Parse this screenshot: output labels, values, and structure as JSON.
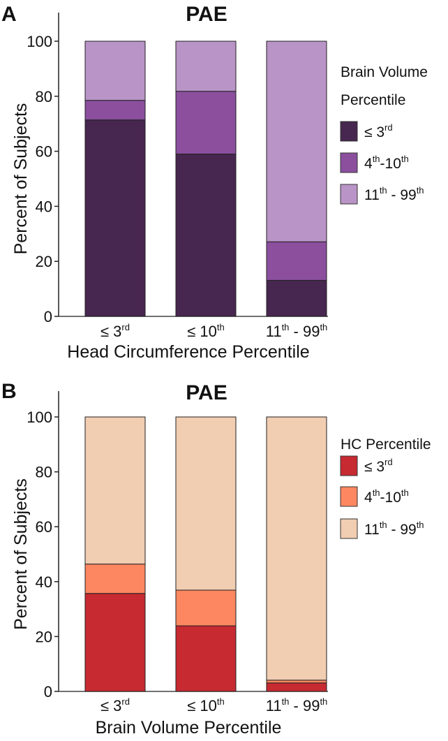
{
  "chart_data": [
    {
      "type": "bar",
      "stacked": true,
      "panel_label": "A",
      "title": "PAE",
      "xlabel": "Head Circumference Percentile",
      "ylabel": "Percent of Subjects",
      "ylim": [
        0,
        110
      ],
      "yticks": [
        "0",
        "20",
        "40",
        "60",
        "80",
        "100"
      ],
      "categories": [
        {
          "base": "≤ 3",
          "sup": "rd"
        },
        {
          "base": "≤ 10",
          "sup": "th"
        },
        {
          "base": "11",
          "sup": "th",
          "mid": " - 99",
          "sup2": "th"
        }
      ],
      "legend_title": [
        "Brain Volume",
        "Percentile"
      ],
      "legend_position": "right",
      "series": [
        {
          "name": {
            "base": "≤ 3",
            "sup": "rd"
          },
          "color": "#47264f",
          "values": [
            71.4,
            59.0,
            13.1
          ]
        },
        {
          "name": {
            "base": "4",
            "sup": "th",
            "mid": "-10",
            "sup2": "th"
          },
          "color": "#8b4f9e",
          "values": [
            7.1,
            22.8,
            14.0
          ]
        },
        {
          "name": {
            "base": "11",
            "sup": "th",
            "mid": " - 99",
            "sup2": "th"
          },
          "color": "#b994c6",
          "values": [
            21.5,
            18.2,
            72.9
          ]
        }
      ]
    },
    {
      "type": "bar",
      "stacked": true,
      "panel_label": "B",
      "title": "PAE",
      "xlabel": "Brain Volume Percentile",
      "ylabel": "Percent of Subjects",
      "ylim": [
        0,
        110
      ],
      "yticks": [
        "0",
        "20",
        "40",
        "60",
        "80",
        "100"
      ],
      "categories": [
        {
          "base": "≤ 3",
          "sup": "rd"
        },
        {
          "base": "≤ 10",
          "sup": "th"
        },
        {
          "base": "11",
          "sup": "th",
          "mid": " - 99",
          "sup2": "th"
        }
      ],
      "legend_title": [
        "HC Percentile"
      ],
      "legend_position": "right",
      "series": [
        {
          "name": {
            "base": "≤ 3",
            "sup": "rd"
          },
          "color": "#c72a31",
          "values": [
            35.7,
            23.9,
            3.1
          ]
        },
        {
          "name": {
            "base": "4",
            "sup": "th",
            "mid": "-10",
            "sup2": "th"
          },
          "color": "#fc8760",
          "values": [
            10.7,
            13.0,
            1.0
          ]
        },
        {
          "name": {
            "base": "11",
            "sup": "th",
            "mid": " - 99",
            "sup2": "th"
          },
          "color": "#f1cdb2",
          "values": [
            53.6,
            63.1,
            95.9
          ]
        }
      ]
    }
  ]
}
